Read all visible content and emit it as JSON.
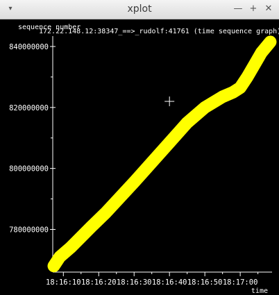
{
  "window": {
    "title": "xplot",
    "menu_glyph": "▾",
    "minimize_glyph": "—",
    "maximize_glyph": "+",
    "close_glyph": "✕"
  },
  "chart_data": {
    "type": "scatter",
    "title": "172.22.148.12:38347_==>_rudolf:41761 (time sequence graph)",
    "ylabel": "sequence number",
    "xlabel": "time",
    "background": "#000000",
    "axis_color": "#ffffff",
    "series_color": "#ffff00",
    "x_ticks": [
      "18:16:10",
      "18:16:20",
      "18:16:30",
      "18:16:40",
      "18:16:50",
      "18:17:00"
    ],
    "x_tick_seconds": [
      10,
      20,
      30,
      40,
      50,
      60
    ],
    "xlim": [
      7,
      69
    ],
    "y_ticks": [
      780000000,
      800000000,
      820000000,
      840000000
    ],
    "y_tick_labels": [
      "780000000",
      "800000000",
      "820000000",
      "840000000"
    ],
    "ylim": [
      766000000,
      842500000
    ],
    "series": [
      {
        "x": [
          7.3,
          9,
          12,
          15,
          18,
          22,
          26,
          30,
          35,
          40,
          45,
          50,
          55,
          58,
          60,
          62,
          64,
          66,
          68.5
        ],
        "y": [
          768000000,
          771000000,
          774000000,
          777500000,
          781000000,
          785500000,
          790500000,
          795500000,
          802000000,
          808500000,
          815000000,
          820000000,
          823500000,
          825000000,
          826500000,
          830000000,
          834000000,
          838000000,
          841500000
        ]
      }
    ],
    "cursor": {
      "x": 40,
      "y": 822000000
    }
  }
}
